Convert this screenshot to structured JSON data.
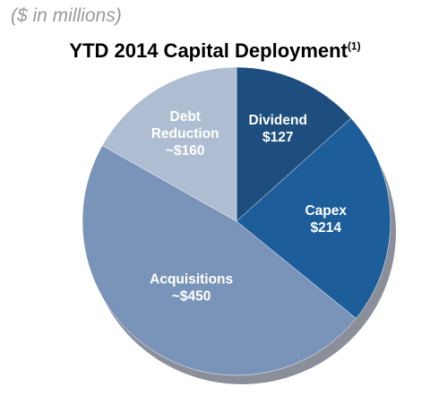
{
  "chart_data": {
    "type": "pie",
    "subtitle": "($ in millions)",
    "title": "YTD 2014 Capital Deployment",
    "title_footnote": "(1)",
    "slices": [
      {
        "label": "Dividend",
        "value_label": "$127",
        "value": 127,
        "color": "#1e4e7e"
      },
      {
        "label": "Capex",
        "value_label": "$214",
        "value": 214,
        "color": "#1c5d9a"
      },
      {
        "label": "Acquisitions",
        "value_label": "~$450",
        "value": 450,
        "color": "#7a93b9"
      },
      {
        "label": "Debt Reduction",
        "value_label": "~$160",
        "value": 160,
        "color": "#aebdd2"
      }
    ],
    "start": "12 o'clock",
    "direction": "clockwise",
    "legend": "none"
  }
}
